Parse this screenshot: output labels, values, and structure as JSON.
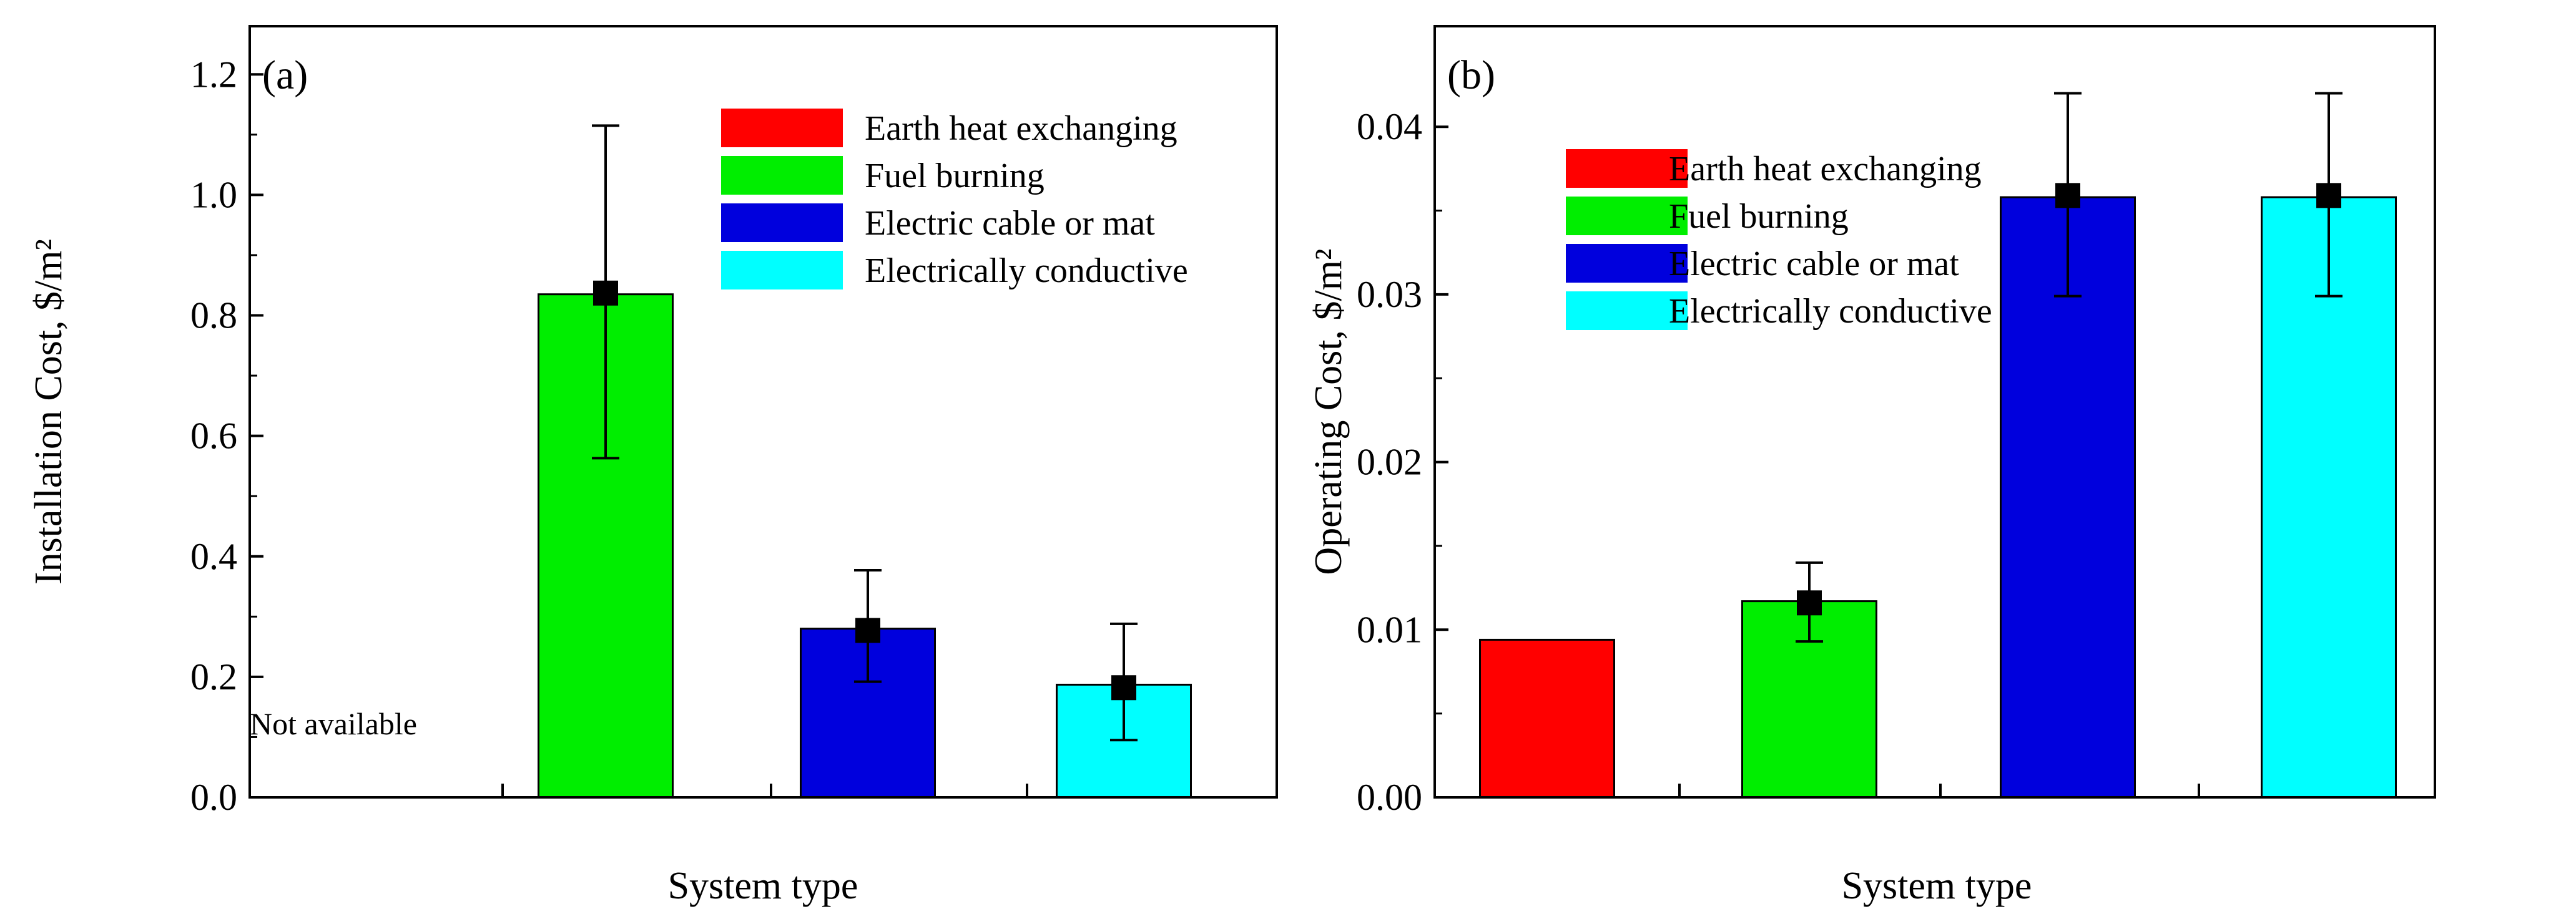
{
  "chart_data": [
    {
      "panel_label": "(a)",
      "type": "bar",
      "title": "",
      "xlabel": "System type",
      "ylabel": "Installation Cost, $/m²",
      "ylim": [
        0,
        1.28
      ],
      "yticks": [
        0.0,
        0.2,
        0.4,
        0.6,
        0.8,
        1.0,
        1.2
      ],
      "ytick_labels": [
        "0.0",
        "0.2",
        "0.4",
        "0.6",
        "0.8",
        "1.0",
        "1.2"
      ],
      "categories": [
        "Earth heat exchanging",
        "Fuel burning",
        "Electric cable or mat",
        "Electrically conductive"
      ],
      "values": [
        null,
        0.835,
        0.28,
        0.187
      ],
      "means": [
        null,
        0.837,
        0.277,
        0.182
      ],
      "error_low": [
        null,
        0.563,
        0.192,
        0.095
      ],
      "error_high": [
        null,
        1.115,
        0.377,
        0.288
      ],
      "colors": [
        "#ff0000",
        "#00ee00",
        "#0000dd",
        "#00ffff"
      ],
      "legend": {
        "placement": "top-right",
        "entries": [
          "Earth heat exchanging",
          "Fuel burning",
          "Electric cable or mat",
          "Electrically conductive"
        ]
      },
      "annotation": "Not available"
    },
    {
      "panel_label": "(b)",
      "type": "bar",
      "title": "",
      "xlabel": "System type",
      "ylabel": "Operating Cost, $/m²",
      "ylim": [
        0,
        0.046
      ],
      "yticks": [
        0.0,
        0.01,
        0.02,
        0.03,
        0.04
      ],
      "ytick_labels": [
        "0.00",
        "0.01",
        "0.02",
        "0.03",
        "0.04"
      ],
      "categories": [
        "Earth heat exchanging",
        "Fuel burning",
        "Electric cable or mat",
        "Electrically conductive"
      ],
      "values": [
        0.0094,
        0.0117,
        0.0358,
        0.0358
      ],
      "means": [
        null,
        0.0116,
        0.0359,
        0.0359
      ],
      "error_low": [
        null,
        0.0093,
        0.0299,
        0.0299
      ],
      "error_high": [
        null,
        0.014,
        0.042,
        0.042
      ],
      "colors": [
        "#ff0000",
        "#00ee00",
        "#0000dd",
        "#00ffff"
      ],
      "legend": {
        "placement": "top-left",
        "entries": [
          "Earth heat exchanging",
          "Fuel burning",
          "Electric cable or mat",
          "Electrically conductive"
        ]
      },
      "annotation": ""
    }
  ]
}
